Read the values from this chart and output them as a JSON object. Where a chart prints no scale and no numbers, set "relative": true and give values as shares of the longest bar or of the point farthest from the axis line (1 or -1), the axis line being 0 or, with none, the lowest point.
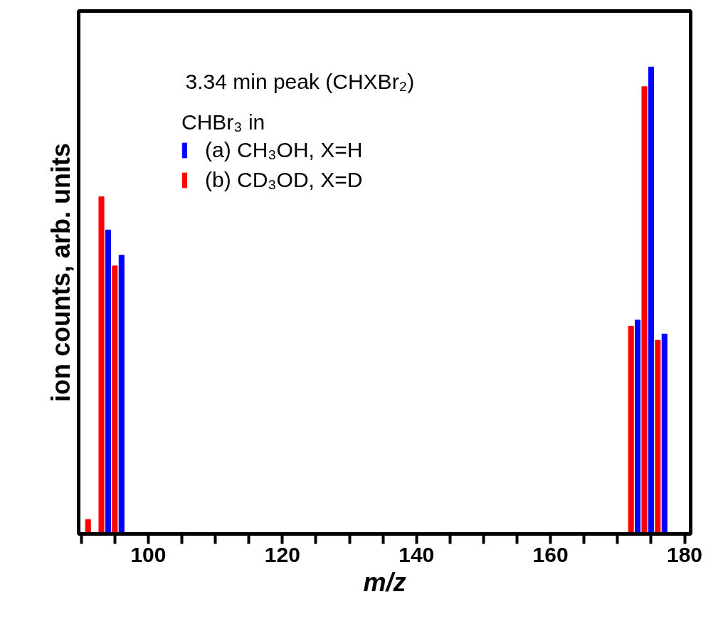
{
  "chart_data": {
    "type": "bar",
    "relative": true,
    "xlabel": "m/z",
    "ylabel": "ion counts, arb. units",
    "legend_title": "CHBr₃ in",
    "annotations": [
      "3.34 min peak (CHXBr₂)"
    ],
    "xlim": [
      89.6,
      180.9
    ],
    "xticks": [
      {
        "value": 90,
        "label": null
      },
      {
        "value": 95,
        "label": null
      },
      100,
      {
        "value": 105,
        "label": null
      },
      {
        "value": 110,
        "label": null
      },
      {
        "value": 115,
        "label": null
      },
      120,
      {
        "value": 125,
        "label": null
      },
      {
        "value": 130,
        "label": null
      },
      {
        "value": 135,
        "label": null
      },
      140,
      {
        "value": 145,
        "label": null
      },
      {
        "value": 150,
        "label": null
      },
      {
        "value": 155,
        "label": null
      },
      160,
      {
        "value": 165,
        "label": null
      },
      {
        "value": 170,
        "label": null
      },
      {
        "value": 175,
        "label": null
      },
      180
    ],
    "tick_labels": "x",
    "grid": false,
    "legend": "top",
    "series": [
      {
        "name": "(a) CH₃OH, X=H",
        "color": "#0000ff",
        "x": [
          94,
          96,
          173,
          175,
          177
        ],
        "values": [
          0.651,
          0.597,
          0.458,
          1,
          0.428
        ]
      },
      {
        "name": "(b) CD₃OD, X=D",
        "color": "#ff0000",
        "x": [
          91,
          93,
          95,
          172,
          174,
          176
        ],
        "values": [
          0.031,
          0.722,
          0.574,
          0.445,
          0.958,
          0.415
        ]
      }
    ]
  }
}
